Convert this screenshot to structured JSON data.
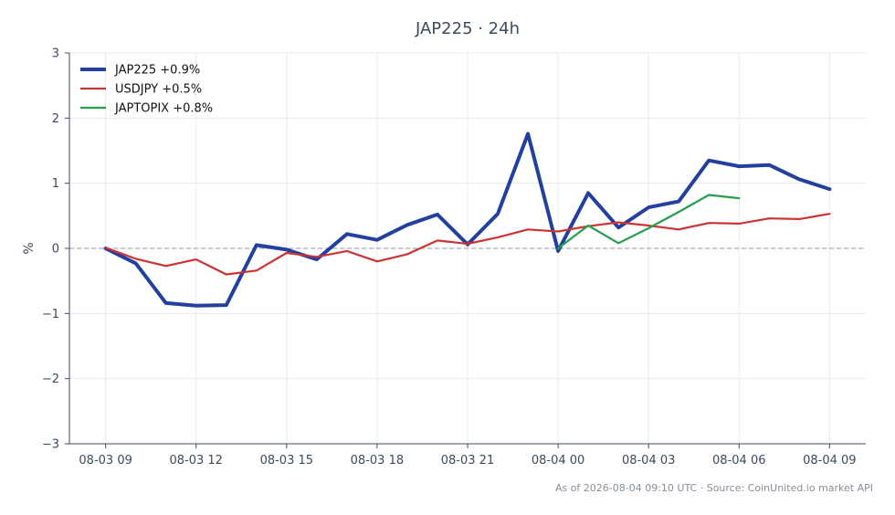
{
  "chart_data": {
    "type": "line",
    "title": "JAP225 · 24h",
    "xlabel": "",
    "ylabel": "%",
    "ylim": [
      -3,
      3
    ],
    "y_ticks": [
      -3,
      -2,
      -1,
      0,
      1,
      2,
      3
    ],
    "y_tick_labels": [
      "−3",
      "−2",
      "−1",
      "0",
      "1",
      "2",
      "3"
    ],
    "x_ticks": [
      0,
      3,
      6,
      9,
      12,
      15,
      18,
      21,
      24
    ],
    "x_tick_labels": [
      "08-03 09",
      "08-03 12",
      "08-03 15",
      "08-03 18",
      "08-03 21",
      "08-04 00",
      "08-04 03",
      "08-04 06",
      "08-04 09"
    ],
    "xlim": [
      -1.2,
      25.2
    ],
    "grid": true,
    "zero_line": true,
    "legend_position": "top-left",
    "series": [
      {
        "name": "JAP225 +0.9%",
        "color": "#2340a0",
        "width": 4,
        "x": [
          0,
          1,
          2,
          3,
          4,
          5,
          6,
          7,
          8,
          9,
          10,
          11,
          12,
          13,
          14,
          15,
          16,
          17,
          18,
          19,
          20,
          21,
          22,
          23,
          24
        ],
        "values": [
          0,
          -0.23,
          -0.84,
          -0.88,
          -0.87,
          0.05,
          -0.02,
          -0.17,
          0.22,
          0.13,
          0.36,
          0.52,
          0.06,
          0.53,
          1.76,
          -0.04,
          0.85,
          0.32,
          0.63,
          0.72,
          1.35,
          1.26,
          1.28,
          1.06,
          0.91
        ]
      },
      {
        "name": "USDJPY +0.5%",
        "color": "#cc3333",
        "width": 2.2,
        "x": [
          0,
          1,
          2,
          3,
          4,
          5,
          6,
          7,
          8,
          9,
          10,
          11,
          12,
          13,
          14,
          15,
          16,
          17,
          18,
          19,
          20,
          21,
          22,
          23,
          24
        ],
        "values": [
          0.01,
          -0.16,
          -0.27,
          -0.17,
          -0.4,
          -0.34,
          -0.07,
          -0.13,
          -0.04,
          -0.2,
          -0.09,
          0.12,
          0.07,
          0.17,
          0.29,
          0.26,
          0.34,
          0.4,
          0.35,
          0.29,
          0.39,
          0.38,
          0.46,
          0.45,
          0.53
        ]
      },
      {
        "name": "JAPTOPIX +0.8%",
        "color": "#22a04a",
        "width": 2.2,
        "x": [
          15,
          16,
          17,
          18,
          19,
          20,
          21
        ],
        "values": [
          0.0,
          0.35,
          0.08,
          0.31,
          0.56,
          0.82,
          0.77
        ]
      }
    ],
    "footer": "As of 2026-08-04 09:10 UTC · Source: CoinUnited.io market API"
  }
}
